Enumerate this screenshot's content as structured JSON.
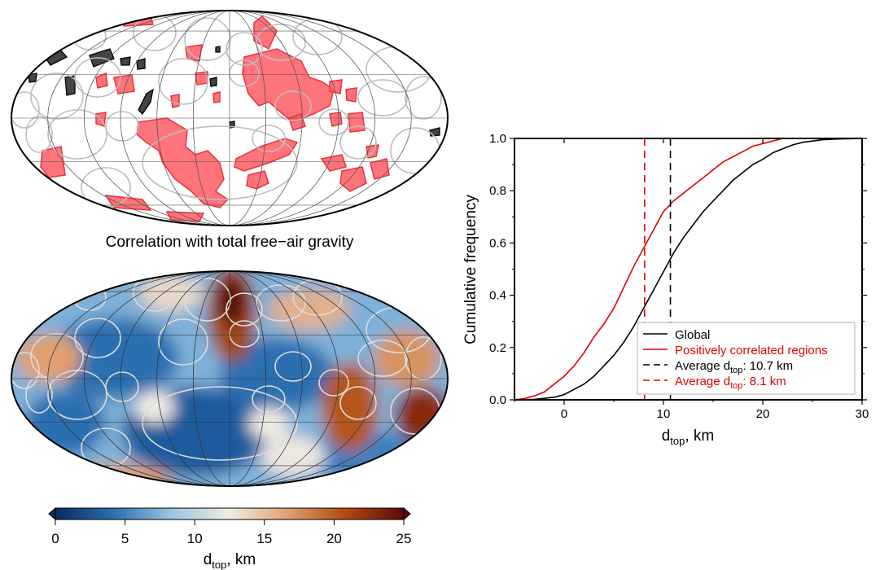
{
  "top_map": {
    "caption": "Correlation with total free−air gravity",
    "colors": {
      "positive": "#ff5a63",
      "negative": "#333333",
      "circles": "#c8c8c8"
    }
  },
  "bottom_map": {
    "colorbar": {
      "ticks": [
        "0",
        "5",
        "10",
        "15",
        "20",
        "25"
      ],
      "label_main": "d",
      "label_sub": "top",
      "label_tail": ", km",
      "range": [
        0,
        25
      ],
      "colors": [
        "#0b2a5c",
        "#2a6fb0",
        "#9cc4e0",
        "#f0ece4",
        "#e0a070",
        "#b04a10",
        "#5a0a0a"
      ]
    }
  },
  "chart_data": {
    "type": "line",
    "ylabel": "Cumulative frequency",
    "xlabel_main": "d",
    "xlabel_sub": "top",
    "xlabel_tail": ", km",
    "xlim": [
      -5,
      30
    ],
    "ylim": [
      0,
      1
    ],
    "x_ticks": [
      0,
      10,
      20,
      30
    ],
    "y_ticks": [
      "0.0",
      "0.2",
      "0.4",
      "0.6",
      "0.8",
      "1.0"
    ],
    "series": [
      {
        "name": "Global",
        "color": "#000000",
        "x": [
          -5,
          -3,
          -1,
          0,
          1,
          2,
          3,
          4,
          5,
          6,
          7,
          8,
          9,
          10,
          11,
          12,
          13,
          14,
          15,
          16,
          17,
          18,
          19,
          20,
          21,
          22,
          23,
          24,
          25,
          26,
          27,
          28,
          29,
          30
        ],
        "y": [
          0.0,
          0.002,
          0.01,
          0.02,
          0.04,
          0.06,
          0.09,
          0.13,
          0.17,
          0.22,
          0.28,
          0.35,
          0.42,
          0.49,
          0.56,
          0.62,
          0.67,
          0.72,
          0.76,
          0.8,
          0.84,
          0.87,
          0.9,
          0.92,
          0.945,
          0.96,
          0.975,
          0.985,
          0.99,
          0.995,
          0.997,
          0.998,
          0.999,
          1.0
        ]
      },
      {
        "name": "Positively correlated regions",
        "color": "#e00000",
        "x": [
          -5,
          -4,
          -3,
          -2,
          -1,
          0,
          1,
          2,
          3,
          4,
          5,
          6,
          7,
          8,
          9,
          10,
          11,
          12,
          13,
          14,
          15,
          16,
          17,
          18,
          19,
          20,
          21,
          22,
          23,
          30
        ],
        "y": [
          0.0,
          0.005,
          0.015,
          0.03,
          0.06,
          0.09,
          0.13,
          0.18,
          0.24,
          0.29,
          0.35,
          0.43,
          0.51,
          0.58,
          0.65,
          0.72,
          0.76,
          0.79,
          0.82,
          0.85,
          0.88,
          0.91,
          0.93,
          0.95,
          0.97,
          0.98,
          0.99,
          1.0,
          1.0,
          1.0
        ]
      }
    ],
    "averages": [
      {
        "label_main": "Average d",
        "label_sub": "top",
        "label_tail": ": 10.7 km",
        "value": 10.7,
        "color": "#000000"
      },
      {
        "label_main": "Average d",
        "label_sub": "top",
        "label_tail": ": 8.1 km",
        "value": 8.1,
        "color": "#e00000"
      }
    ],
    "legend_position": "bottom-right"
  }
}
